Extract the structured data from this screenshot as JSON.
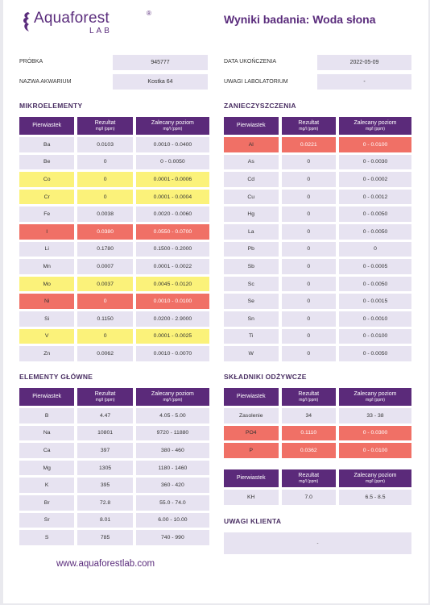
{
  "brand": {
    "name": "Aquaforest",
    "sub": "LAB",
    "reg": "®"
  },
  "report_title": "Wyniki badania: Woda słona",
  "info": {
    "sample_label": "PRÓBKA",
    "sample_value": "945777",
    "aquarium_label": "NAZWA AKWARIUM",
    "aquarium_value": "Kostka 64",
    "date_label": "DATA UKOŃCZENIA",
    "date_value": "2022-05-09",
    "lab_notes_label": "UWAGI LABOLATORIUM",
    "lab_notes_value": "-"
  },
  "headers": {
    "element": "Pierwiastek",
    "result": "Rezultat",
    "unit": "mg/l (ppm)",
    "recommended": "Zalecany poziom"
  },
  "sections": {
    "micro": {
      "title": "MIKROELEMENTY",
      "rows": [
        {
          "el": "Ba",
          "val": "0.0103",
          "rec": "0.0010 - 0.0400",
          "status": "ok"
        },
        {
          "el": "Be",
          "val": "0",
          "rec": "0 - 0.0050",
          "status": "ok"
        },
        {
          "el": "Co",
          "val": "0",
          "rec": "0.0001 - 0.0006",
          "status": "warn"
        },
        {
          "el": "Cr",
          "val": "0",
          "rec": "0.0001 - 0.0004",
          "status": "warn"
        },
        {
          "el": "Fe",
          "val": "0.0038",
          "rec": "0.0020 - 0.0060",
          "status": "ok"
        },
        {
          "el": "I",
          "val": "0.0380",
          "rec": "0.0550 - 0.0700",
          "status": "low"
        },
        {
          "el": "Li",
          "val": "0.1780",
          "rec": "0.1500 - 0.2000",
          "status": "ok"
        },
        {
          "el": "Mn",
          "val": "0.0007",
          "rec": "0.0001 - 0.0022",
          "status": "ok"
        },
        {
          "el": "Mo",
          "val": "0.0037",
          "rec": "0.0045 - 0.0120",
          "status": "warn"
        },
        {
          "el": "Ni",
          "val": "0",
          "rec": "0.0010 - 0.0100",
          "status": "low"
        },
        {
          "el": "Si",
          "val": "0.1150",
          "rec": "0.0200 - 2.9000",
          "status": "ok"
        },
        {
          "el": "V",
          "val": "0",
          "rec": "0.0001 - 0.0025",
          "status": "warn"
        },
        {
          "el": "Zn",
          "val": "0.0062",
          "rec": "0.0010 - 0.0070",
          "status": "ok"
        }
      ]
    },
    "contaminants": {
      "title": "ZANIECZYSZCZENIA",
      "rows": [
        {
          "el": "Al",
          "val": "0.0221",
          "rec": "0 - 0.0100",
          "status": "high"
        },
        {
          "el": "As",
          "val": "0",
          "rec": "0 - 0.0030",
          "status": "ok"
        },
        {
          "el": "Cd",
          "val": "0",
          "rec": "0 - 0.0002",
          "status": "ok"
        },
        {
          "el": "Cu",
          "val": "0",
          "rec": "0 - 0.0012",
          "status": "ok"
        },
        {
          "el": "Hg",
          "val": "0",
          "rec": "0 - 0.0050",
          "status": "ok"
        },
        {
          "el": "La",
          "val": "0",
          "rec": "0 - 0.0050",
          "status": "ok"
        },
        {
          "el": "Pb",
          "val": "0",
          "rec": "0",
          "status": "ok"
        },
        {
          "el": "Sb",
          "val": "0",
          "rec": "0 - 0.0005",
          "status": "ok"
        },
        {
          "el": "Sc",
          "val": "0",
          "rec": "0 - 0.0050",
          "status": "ok"
        },
        {
          "el": "Se",
          "val": "0",
          "rec": "0 - 0.0015",
          "status": "ok"
        },
        {
          "el": "Sn",
          "val": "0",
          "rec": "0 - 0.0010",
          "status": "ok"
        },
        {
          "el": "Ti",
          "val": "0",
          "rec": "0 - 0.0100",
          "status": "ok"
        },
        {
          "el": "W",
          "val": "0",
          "rec": "0 - 0.0050",
          "status": "ok"
        }
      ]
    },
    "main": {
      "title": "ELEMENTY GŁÓWNE",
      "rows": [
        {
          "el": "B",
          "val": "4.47",
          "rec": "4.05 - 5.00",
          "status": "ok"
        },
        {
          "el": "Na",
          "val": "10801",
          "rec": "9720 - 11880",
          "status": "ok"
        },
        {
          "el": "Ca",
          "val": "397",
          "rec": "380 - 460",
          "status": "ok"
        },
        {
          "el": "Mg",
          "val": "1305",
          "rec": "1180 - 1460",
          "status": "ok"
        },
        {
          "el": "K",
          "val": "395",
          "rec": "360 - 420",
          "status": "ok"
        },
        {
          "el": "Br",
          "val": "72.8",
          "rec": "55.0 - 74.0",
          "status": "ok"
        },
        {
          "el": "Sr",
          "val": "8.01",
          "rec": "6.00 - 10.00",
          "status": "ok"
        },
        {
          "el": "S",
          "val": "785",
          "rec": "740 - 990",
          "status": "ok"
        }
      ]
    },
    "nutrients": {
      "title": "SKŁADNIKI ODŻYWCZE",
      "rows": [
        {
          "el": "Zasolenie",
          "val": "34",
          "rec": "33 - 38",
          "status": "ok"
        },
        {
          "el": "PO4",
          "val": "0.1110",
          "rec": "0 - 0.0300",
          "status": "high"
        },
        {
          "el": "P",
          "val": "0.0362",
          "rec": "0 - 0.0100",
          "status": "high"
        }
      ]
    },
    "kh": {
      "rows": [
        {
          "el": "KH",
          "val": "7.0",
          "rec": "6.5 - 8.5",
          "status": "ok"
        }
      ]
    }
  },
  "client_notes": {
    "title": "UWAGI KLIENTA",
    "value": "-"
  },
  "website": "www.aquaforestlab.com",
  "colors": {
    "purple": "#5b2a7a",
    "cell": "#e7e3f1",
    "red": "#f07066",
    "yellow": "#fbf27a"
  }
}
